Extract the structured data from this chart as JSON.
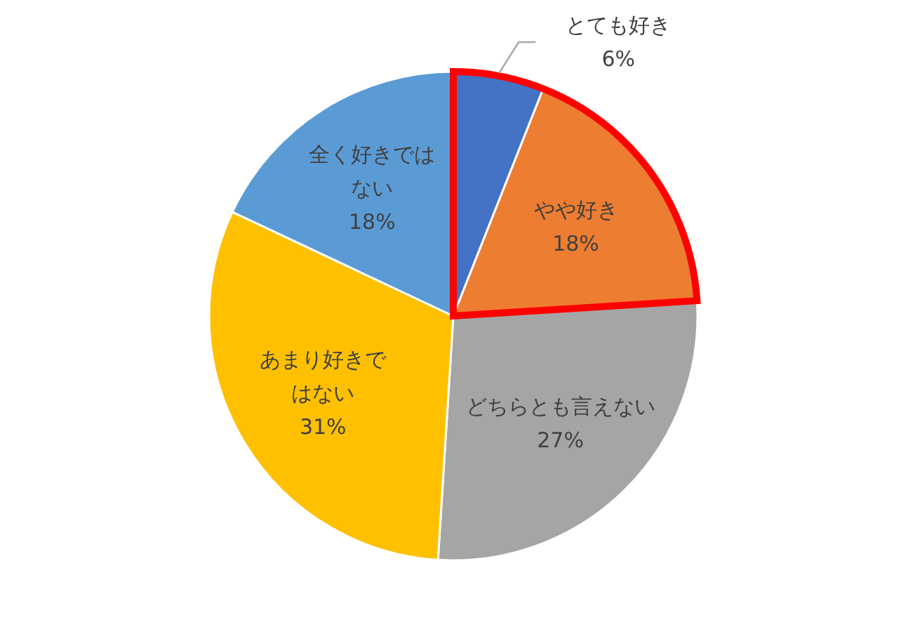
{
  "chart_data": {
    "type": "pie",
    "categories": [
      "とても好き",
      "やや好き",
      "どちらとも言えない",
      "あまり好きではない",
      "全く好きではない"
    ],
    "values": [
      6,
      18,
      27,
      31,
      18
    ],
    "value_labels": [
      "6%",
      "18%",
      "27%",
      "31%",
      "18%"
    ],
    "colors": [
      "#4472c4",
      "#ed7d31",
      "#a5a5a5",
      "#ffc000",
      "#5b9bd5"
    ]
  }
}
